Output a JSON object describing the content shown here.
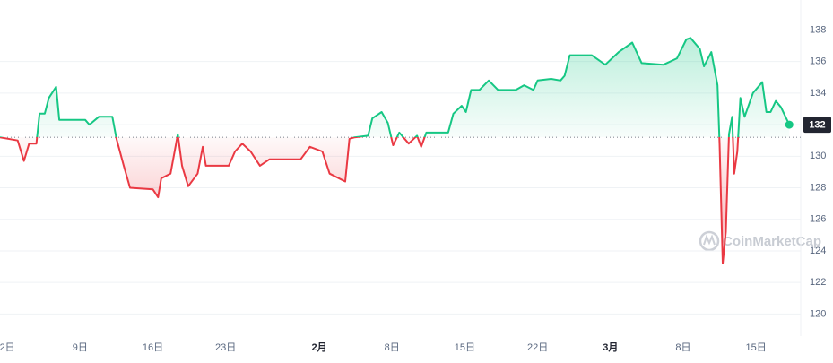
{
  "chart_data": {
    "type": "line",
    "watermark": "CoinMarketCap",
    "baseline": 131.2,
    "current_price": 132,
    "color_up": "#16c784",
    "color_down": "#ea3943",
    "grid": true,
    "xlim": [
      -0.7,
      76.3
    ],
    "ylim": [
      119,
      139.9
    ],
    "yticks": [
      120,
      122,
      124,
      126,
      128,
      130,
      132,
      134,
      136,
      138
    ],
    "xticks": [
      {
        "value": 0,
        "label": "2日"
      },
      {
        "value": 7,
        "label": "9日"
      },
      {
        "value": 14,
        "label": "16日"
      },
      {
        "value": 21,
        "label": "23日"
      },
      {
        "value": 30,
        "label": "2月",
        "bold": true
      },
      {
        "value": 37,
        "label": "8日"
      },
      {
        "value": 44,
        "label": "15日"
      },
      {
        "value": 51,
        "label": "22日"
      },
      {
        "value": 58,
        "label": "3月",
        "bold": true
      },
      {
        "value": 65,
        "label": "8日"
      },
      {
        "value": 72,
        "label": "15日"
      }
    ],
    "x": [
      -0.7,
      1.0,
      1.6,
      2.1,
      2.8,
      3.1,
      3.6,
      4.0,
      4.7,
      5.0,
      7.5,
      7.9,
      8.8,
      10.1,
      10.5,
      11.2,
      11.8,
      14.0,
      14.5,
      14.8,
      15.7,
      16.4,
      16.8,
      17.4,
      18.3,
      18.8,
      19.1,
      21.3,
      21.9,
      22.6,
      23.4,
      24.3,
      25.2,
      28.2,
      29.1,
      30.3,
      31.0,
      32.5,
      32.9,
      33.4,
      34.7,
      35.1,
      36.0,
      36.6,
      37.1,
      37.7,
      38.6,
      39.4,
      39.8,
      40.3,
      42.4,
      42.9,
      43.7,
      44.1,
      44.6,
      45.4,
      46.3,
      47.2,
      48.9,
      49.7,
      50.6,
      51.0,
      52.3,
      53.2,
      53.6,
      54.1,
      56.2,
      57.5,
      58.8,
      60.1,
      61.0,
      63.1,
      64.4,
      65.3,
      65.7,
      66.6,
      67.0,
      67.7,
      68.3,
      68.5,
      68.8,
      69.1,
      69.4,
      69.7,
      69.9,
      70.2,
      70.5,
      70.9,
      71.7,
      72.6,
      73.0,
      73.4,
      73.9,
      74.4,
      75.2
    ],
    "values": [
      131.2,
      131.0,
      129.7,
      130.8,
      130.8,
      132.7,
      132.7,
      133.7,
      134.4,
      132.3,
      132.3,
      132.0,
      132.5,
      132.5,
      131.1,
      129.4,
      128.0,
      127.9,
      127.4,
      128.6,
      128.9,
      131.4,
      129.4,
      128.1,
      128.9,
      130.6,
      129.4,
      129.4,
      130.3,
      130.8,
      130.3,
      129.4,
      129.8,
      129.8,
      130.6,
      130.3,
      128.9,
      128.4,
      131.1,
      131.2,
      131.3,
      132.4,
      132.8,
      132.1,
      130.7,
      131.5,
      130.8,
      131.3,
      130.6,
      131.5,
      131.5,
      132.7,
      133.2,
      132.8,
      134.2,
      134.2,
      134.8,
      134.2,
      134.2,
      134.5,
      134.2,
      134.8,
      134.9,
      134.8,
      135.1,
      136.4,
      136.4,
      135.8,
      136.6,
      137.2,
      135.9,
      135.8,
      136.2,
      137.4,
      137.5,
      136.8,
      135.7,
      136.6,
      134.5,
      130.8,
      123.2,
      125.2,
      131.4,
      132.5,
      128.9,
      130.3,
      133.7,
      132.5,
      134.0,
      134.7,
      132.8,
      132.8,
      133.5,
      133.1,
      132.0
    ]
  }
}
